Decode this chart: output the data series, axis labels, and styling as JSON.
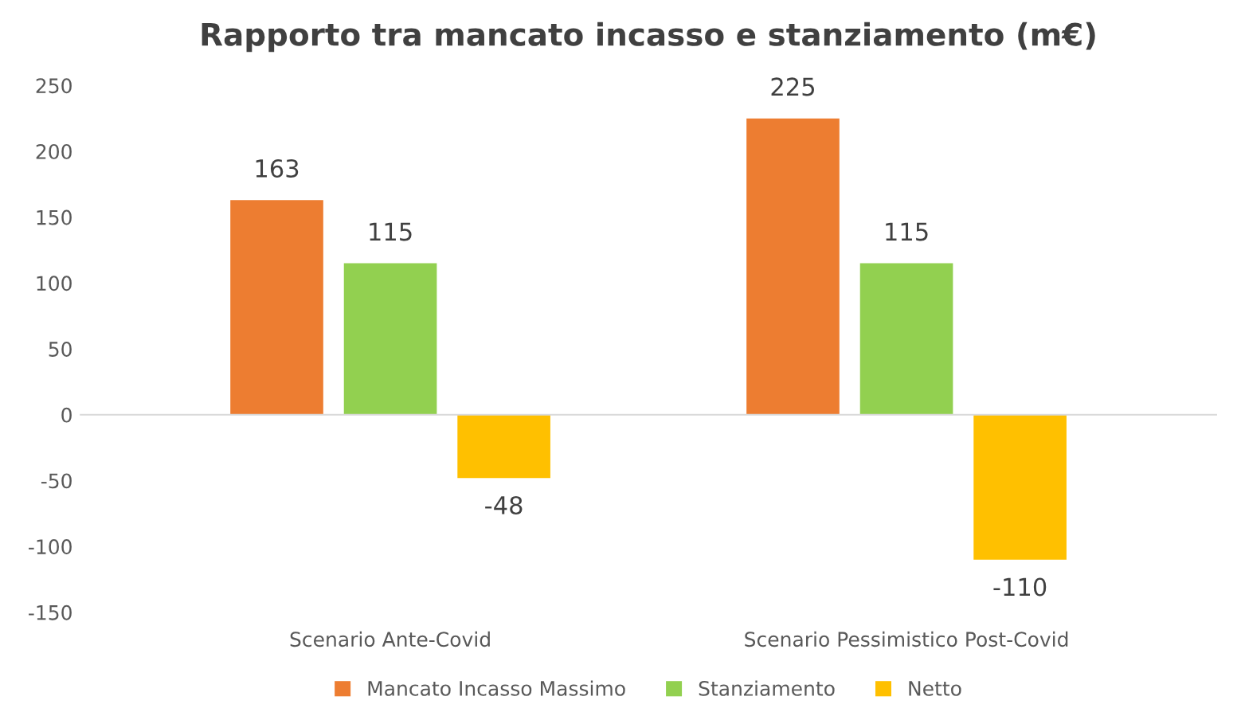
{
  "chart_data": {
    "type": "bar",
    "title": "Rapporto tra mancato incasso e stanziamento (m€)",
    "categories": [
      "Scenario Ante-Covid",
      "Scenario Pessimistico Post-Covid"
    ],
    "series": [
      {
        "name": "Mancato Incasso Massimo",
        "color": "#ed7d31",
        "values": [
          163,
          225
        ]
      },
      {
        "name": "Stanziamento",
        "color": "#92d050",
        "values": [
          115,
          115
        ]
      },
      {
        "name": "Netto",
        "color": "#ffc000",
        "values": [
          -48,
          -110
        ]
      }
    ],
    "ylim": [
      -150,
      250
    ],
    "yticks": [
      -150,
      -100,
      -50,
      0,
      50,
      100,
      150,
      200,
      250
    ],
    "data_labels": true,
    "legend": "bottom"
  }
}
